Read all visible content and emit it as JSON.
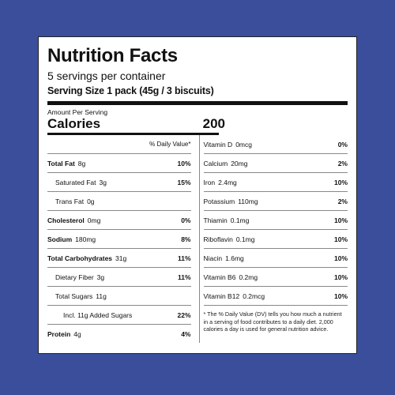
{
  "label": {
    "title": "Nutrition Facts",
    "servings": "5 servings per container",
    "serving_size": "Serving Size 1 pack (45g / 3 biscuits)",
    "amount_per_serving": "Amount Per Serving",
    "calories_label": "Calories",
    "calories_value": "200",
    "daily_value_header": "% Daily Value*"
  },
  "left_rows": [
    {
      "name": "Total Fat",
      "amount": "8g",
      "dv": "10%",
      "bold": true,
      "indent": 0
    },
    {
      "name": "Saturated Fat",
      "amount": "3g",
      "dv": "15%",
      "bold": false,
      "indent": 1
    },
    {
      "name": "Trans Fat",
      "amount": "0g",
      "dv": "",
      "bold": false,
      "indent": 1
    },
    {
      "name": "Cholesterol",
      "amount": "0mg",
      "dv": "0%",
      "bold": true,
      "indent": 0
    },
    {
      "name": "Sodium",
      "amount": "180mg",
      "dv": "8%",
      "bold": true,
      "indent": 0
    },
    {
      "name": "Total Carbohydrates",
      "amount": "31g",
      "dv": "11%",
      "bold": true,
      "indent": 0
    },
    {
      "name": "Dietary Fiber",
      "amount": "3g",
      "dv": "11%",
      "bold": false,
      "indent": 1
    },
    {
      "name": "Total Sugars",
      "amount": "11g",
      "dv": "",
      "bold": false,
      "indent": 1
    },
    {
      "name": "Incl. 11g Added Sugars",
      "amount": "",
      "dv": "22%",
      "bold": false,
      "indent": 2
    },
    {
      "name": "Protein",
      "amount": "4g",
      "dv": "4%",
      "bold": true,
      "indent": 0
    }
  ],
  "right_rows": [
    {
      "name": "Vitamin D",
      "amount": "0mcg",
      "dv": "0%"
    },
    {
      "name": "Calcium",
      "amount": "20mg",
      "dv": "2%"
    },
    {
      "name": "Iron",
      "amount": "2.4mg",
      "dv": "10%"
    },
    {
      "name": "Potassium",
      "amount": "110mg",
      "dv": "2%"
    },
    {
      "name": "Thiamin",
      "amount": "0.1mg",
      "dv": "10%"
    },
    {
      "name": "Riboflavin",
      "amount": "0.1mg",
      "dv": "10%"
    },
    {
      "name": "Niacin",
      "amount": "1.6mg",
      "dv": "10%"
    },
    {
      "name": "Vitamin B6",
      "amount": "0.2mg",
      "dv": "10%"
    },
    {
      "name": "Vitamin B12",
      "amount": "0.2mcg",
      "dv": "10%"
    }
  ],
  "footnote": "* The % Daily Value (DV) tells you how much a nutrient in a serving of food contributes to a daily diet. 2,000 calories a day is used for general nutrition advice.",
  "colors": {
    "background": "#3a4e9c",
    "panel": "#ffffff",
    "text": "#111111"
  }
}
